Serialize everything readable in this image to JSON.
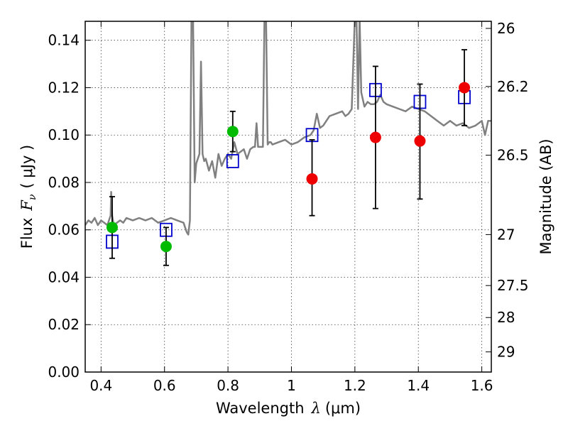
{
  "chart_data": {
    "type": "scatter",
    "xlabel_prefix": "Wavelength",
    "xlabel_symbol": "λ",
    "xlabel_unit": "(μm)",
    "ylabel_prefix": "Flux",
    "ylabel_symbol": "F",
    "ylabel_subscript": "ν",
    "ylabel_unit": "( μJy )",
    "y2label": "Magnitude (AB)",
    "xlim": [
      0.35,
      1.63
    ],
    "ylim": [
      0.0,
      0.148
    ],
    "grid": true,
    "x_ticks": [
      0.4,
      0.6,
      0.8,
      1.0,
      1.2,
      1.4,
      1.6
    ],
    "x_tick_labels": [
      "0.4",
      "0.6",
      "0.8",
      "1",
      "1.2",
      "1.4",
      "1.6"
    ],
    "y_ticks": [
      0.0,
      0.02,
      0.04,
      0.06,
      0.08,
      0.1,
      0.12,
      0.14
    ],
    "y_tick_labels": [
      "0.00",
      "0.02",
      "0.04",
      "0.06",
      "0.08",
      "0.10",
      "0.12",
      "0.14"
    ],
    "y2_ticks": [
      {
        "label": "26",
        "flux": 0.145
      },
      {
        "label": "26.2",
        "flux": 0.1205
      },
      {
        "label": "26.5",
        "flux": 0.0915
      },
      {
        "label": "27",
        "flux": 0.058
      },
      {
        "label": "27.5",
        "flux": 0.0365
      },
      {
        "label": "28",
        "flux": 0.023
      },
      {
        "label": "29",
        "flux": 0.0085
      }
    ],
    "colors": {
      "model": "#808080",
      "green": "#00bb00",
      "red": "#ee0000",
      "square": "#0000cc",
      "errorbar": "#000000"
    },
    "series": [
      {
        "kind": "line",
        "color": "#808080",
        "x": [
          0.35,
          0.36,
          0.37,
          0.38,
          0.39,
          0.4,
          0.41,
          0.42,
          0.425,
          0.43,
          0.432,
          0.435,
          0.44,
          0.45,
          0.46,
          0.47,
          0.48,
          0.5,
          0.52,
          0.54,
          0.56,
          0.58,
          0.6,
          0.62,
          0.64,
          0.66,
          0.67,
          0.675,
          0.68,
          0.685,
          0.69,
          0.695,
          0.7,
          0.705,
          0.71,
          0.715,
          0.72,
          0.725,
          0.73,
          0.74,
          0.75,
          0.76,
          0.77,
          0.78,
          0.79,
          0.8,
          0.81,
          0.82,
          0.83,
          0.84,
          0.85,
          0.86,
          0.87,
          0.88,
          0.885,
          0.89,
          0.895,
          0.9,
          0.91,
          0.915,
          0.92,
          0.925,
          0.93,
          0.935,
          0.94,
          0.96,
          0.98,
          1.0,
          1.02,
          1.04,
          1.06,
          1.07,
          1.08,
          1.09,
          1.1,
          1.12,
          1.14,
          1.16,
          1.17,
          1.18,
          1.19,
          1.2,
          1.205,
          1.21,
          1.215,
          1.22,
          1.23,
          1.24,
          1.25,
          1.26,
          1.27,
          1.28,
          1.29,
          1.3,
          1.32,
          1.34,
          1.36,
          1.38,
          1.4,
          1.42,
          1.44,
          1.46,
          1.48,
          1.5,
          1.52,
          1.54,
          1.56,
          1.58,
          1.6,
          1.61,
          1.62,
          1.63
        ],
        "y": [
          0.062,
          0.064,
          0.063,
          0.065,
          0.062,
          0.064,
          0.063,
          0.062,
          0.064,
          0.066,
          0.076,
          0.066,
          0.062,
          0.063,
          0.064,
          0.063,
          0.065,
          0.064,
          0.065,
          0.064,
          0.065,
          0.063,
          0.064,
          0.065,
          0.064,
          0.063,
          0.059,
          0.058,
          0.064,
          0.15,
          0.15,
          0.08,
          0.088,
          0.09,
          0.092,
          0.131,
          0.092,
          0.089,
          0.09,
          0.085,
          0.089,
          0.082,
          0.092,
          0.087,
          0.09,
          0.092,
          0.09,
          0.097,
          0.092,
          0.093,
          0.094,
          0.09,
          0.094,
          0.095,
          0.095,
          0.105,
          0.095,
          0.095,
          0.095,
          0.15,
          0.15,
          0.096,
          0.097,
          0.097,
          0.096,
          0.097,
          0.098,
          0.096,
          0.097,
          0.099,
          0.1,
          0.102,
          0.109,
          0.103,
          0.104,
          0.108,
          0.109,
          0.11,
          0.108,
          0.109,
          0.111,
          0.15,
          0.15,
          0.111,
          0.15,
          0.118,
          0.112,
          0.114,
          0.113,
          0.113,
          0.114,
          0.117,
          0.114,
          0.113,
          0.112,
          0.111,
          0.11,
          0.112,
          0.111,
          0.11,
          0.108,
          0.106,
          0.104,
          0.106,
          0.104,
          0.105,
          0.103,
          0.104,
          0.106,
          0.1,
          0.106,
          0.106
        ]
      },
      {
        "kind": "squares",
        "color": "#0000cc",
        "x": [
          0.435,
          0.605,
          0.815,
          1.065,
          1.265,
          1.405,
          1.545
        ],
        "y": [
          0.055,
          0.06,
          0.089,
          0.1,
          0.119,
          0.114,
          0.116
        ]
      },
      {
        "kind": "circles",
        "color": "#00bb00",
        "x": [
          0.435,
          0.605,
          0.815
        ],
        "y": [
          0.061,
          0.053,
          0.1015
        ],
        "yerr_low": [
          0.048,
          0.045,
          0.093
        ],
        "yerr_high": [
          0.074,
          0.061,
          0.11
        ]
      },
      {
        "kind": "circles",
        "color": "#ee0000",
        "x": [
          1.065,
          1.265,
          1.405,
          1.545
        ],
        "y": [
          0.0815,
          0.099,
          0.0975,
          0.12
        ],
        "yerr_low": [
          0.066,
          0.069,
          0.073,
          0.104
        ],
        "yerr_high": [
          0.098,
          0.129,
          0.1215,
          0.136
        ]
      }
    ]
  }
}
